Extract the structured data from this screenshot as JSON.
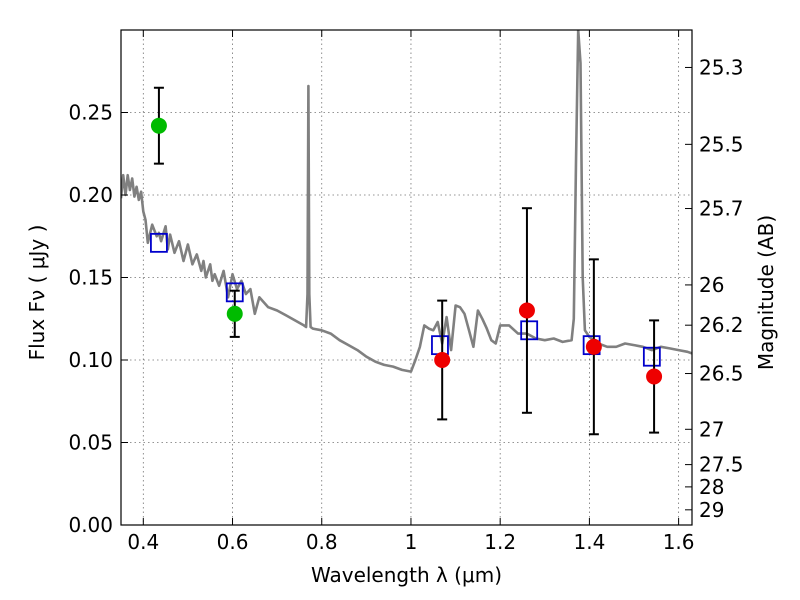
{
  "chart_data": {
    "type": "scatter",
    "title": "",
    "xlabel": "Wavelength  λ (μm)",
    "ylabel": "Flux  Fν  ( μJy )",
    "y2label": "Magnitude (AB)",
    "xlim": [
      0.35,
      1.63
    ],
    "ylim": [
      0.0,
      0.3
    ],
    "grid": true,
    "x_ticks": [
      0.4,
      0.6,
      0.8,
      1.0,
      1.2,
      1.4,
      1.6
    ],
    "x_tick_labels": [
      "0.4",
      "0.6",
      "0.8",
      "1",
      "1.2",
      "1.4",
      "1.6"
    ],
    "y_ticks": [
      0.0,
      0.05,
      0.1,
      0.15,
      0.2,
      0.25
    ],
    "y_tick_labels": [
      "0.00",
      "0.05",
      "0.10",
      "0.15",
      "0.20",
      "0.25"
    ],
    "y2_ticks": [
      {
        "label": "25.3",
        "flux": 0.2773
      },
      {
        "label": "25.5",
        "flux": 0.2307
      },
      {
        "label": "25.7",
        "flux": 0.1918
      },
      {
        "label": "26",
        "flux": 0.1455
      },
      {
        "label": "26.2",
        "flux": 0.1211
      },
      {
        "label": "26.5",
        "flux": 0.0918
      },
      {
        "label": "27",
        "flux": 0.058
      },
      {
        "label": "27.5",
        "flux": 0.0366
      },
      {
        "label": "28",
        "flux": 0.0231
      },
      {
        "label": "29",
        "flux": 0.0092
      }
    ],
    "series": [
      {
        "name": "Model spectrum",
        "kind": "line",
        "color": "#808080",
        "x": [
          0.35,
          0.355,
          0.36,
          0.365,
          0.37,
          0.375,
          0.38,
          0.385,
          0.39,
          0.395,
          0.4,
          0.405,
          0.41,
          0.42,
          0.43,
          0.435,
          0.44,
          0.45,
          0.455,
          0.46,
          0.47,
          0.48,
          0.49,
          0.5,
          0.51,
          0.52,
          0.53,
          0.535,
          0.54,
          0.55,
          0.555,
          0.56,
          0.57,
          0.58,
          0.59,
          0.6,
          0.61,
          0.62,
          0.63,
          0.64,
          0.65,
          0.66,
          0.68,
          0.7,
          0.72,
          0.74,
          0.76,
          0.765,
          0.768,
          0.77,
          0.772,
          0.775,
          0.78,
          0.8,
          0.82,
          0.84,
          0.86,
          0.88,
          0.9,
          0.92,
          0.94,
          0.96,
          0.98,
          1.0,
          1.01,
          1.02,
          1.03,
          1.04,
          1.05,
          1.06,
          1.07,
          1.08,
          1.09,
          1.1,
          1.11,
          1.12,
          1.13,
          1.14,
          1.15,
          1.16,
          1.17,
          1.18,
          1.19,
          1.2,
          1.22,
          1.24,
          1.26,
          1.28,
          1.3,
          1.32,
          1.34,
          1.36,
          1.365,
          1.37,
          1.375,
          1.38,
          1.385,
          1.39,
          1.4,
          1.42,
          1.44,
          1.46,
          1.48,
          1.5,
          1.52,
          1.54,
          1.56,
          1.58,
          1.6,
          1.62,
          1.63
        ],
        "y": [
          0.198,
          0.212,
          0.2,
          0.212,
          0.203,
          0.21,
          0.199,
          0.205,
          0.197,
          0.202,
          0.19,
          0.185,
          0.171,
          0.182,
          0.175,
          0.177,
          0.172,
          0.181,
          0.167,
          0.176,
          0.165,
          0.172,
          0.16,
          0.17,
          0.158,
          0.164,
          0.154,
          0.16,
          0.15,
          0.158,
          0.148,
          0.152,
          0.145,
          0.154,
          0.138,
          0.152,
          0.143,
          0.148,
          0.14,
          0.143,
          0.128,
          0.138,
          0.132,
          0.13,
          0.127,
          0.124,
          0.121,
          0.12,
          0.14,
          0.266,
          0.14,
          0.12,
          0.119,
          0.118,
          0.116,
          0.112,
          0.109,
          0.106,
          0.102,
          0.099,
          0.097,
          0.096,
          0.094,
          0.093,
          0.1,
          0.108,
          0.121,
          0.119,
          0.118,
          0.123,
          0.11,
          0.126,
          0.106,
          0.133,
          0.132,
          0.128,
          0.118,
          0.108,
          0.13,
          0.125,
          0.119,
          0.112,
          0.11,
          0.121,
          0.121,
          0.116,
          0.116,
          0.113,
          0.112,
          0.113,
          0.111,
          0.112,
          0.125,
          0.22,
          0.3,
          0.28,
          0.15,
          0.118,
          0.114,
          0.11,
          0.108,
          0.108,
          0.11,
          0.109,
          0.108,
          0.106,
          0.108,
          0.107,
          0.106,
          0.105,
          0.104
        ]
      },
      {
        "name": "Green points",
        "kind": "points",
        "color": "#00bb00",
        "x": [
          0.435,
          0.605
        ],
        "y": [
          0.242,
          0.128
        ],
        "err": [
          0.023,
          0.014
        ]
      },
      {
        "name": "Red points",
        "kind": "points",
        "color": "#ee0000",
        "x": [
          1.07,
          1.26,
          1.41,
          1.545
        ],
        "y": [
          0.1,
          0.13,
          0.108,
          0.09
        ],
        "err": [
          0.036,
          0.062,
          0.053,
          0.034
        ]
      },
      {
        "name": "Blue squares",
        "kind": "squares",
        "color": "#0000cc",
        "x": [
          0.435,
          0.605,
          1.065,
          1.265,
          1.405,
          1.54
        ],
        "y": [
          0.171,
          0.141,
          0.109,
          0.118,
          0.109,
          0.102
        ]
      }
    ]
  }
}
